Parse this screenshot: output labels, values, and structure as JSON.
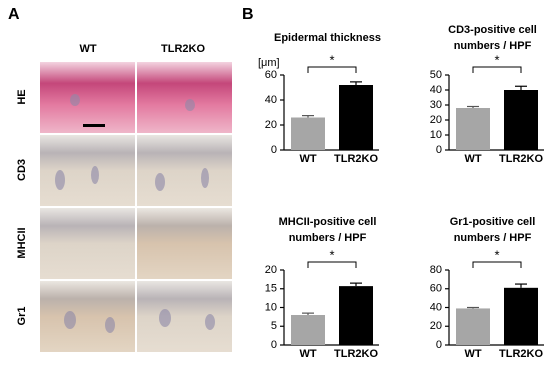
{
  "panels": {
    "a": {
      "label": "A",
      "columns": [
        "WT",
        "TLR2KO"
      ],
      "rows": [
        "HE",
        "CD3",
        "MHCII",
        "Gr1"
      ]
    },
    "b": {
      "label": "B"
    }
  },
  "chart_data": [
    {
      "type": "bar",
      "title": [
        "Epidermal thickness"
      ],
      "ylabel": "[μm]",
      "categories": [
        "WT",
        "TLR2KO"
      ],
      "series": [
        {
          "values": [
            26,
            52
          ],
          "errors": [
            1.5,
            2.5
          ],
          "colors": [
            "#a6a6a6",
            "#000000"
          ]
        }
      ],
      "ylim": [
        0,
        60
      ],
      "yticks": [
        0,
        20,
        40,
        60
      ],
      "annotation": "*"
    },
    {
      "type": "bar",
      "title": [
        "CD3-positive cell",
        "numbers / HPF"
      ],
      "categories": [
        "WT",
        "TLR2KO"
      ],
      "series": [
        {
          "values": [
            28,
            40
          ],
          "errors": [
            1,
            2.5
          ],
          "colors": [
            "#a6a6a6",
            "#000000"
          ]
        }
      ],
      "ylim": [
        0,
        50
      ],
      "yticks": [
        0,
        10,
        20,
        30,
        40,
        50
      ],
      "annotation": "*"
    },
    {
      "type": "bar",
      "title": [
        "MHCII-positive cell",
        "numbers / HPF"
      ],
      "categories": [
        "WT",
        "TLR2KO"
      ],
      "series": [
        {
          "values": [
            8,
            15.7
          ],
          "errors": [
            0.5,
            0.8
          ],
          "colors": [
            "#a6a6a6",
            "#000000"
          ]
        }
      ],
      "ylim": [
        0,
        20
      ],
      "yticks": [
        0,
        5,
        10,
        15,
        20
      ],
      "annotation": "*"
    },
    {
      "type": "bar",
      "title": [
        "Gr1-positive cell",
        "numbers / HPF"
      ],
      "categories": [
        "WT",
        "TLR2KO"
      ],
      "series": [
        {
          "values": [
            39,
            61
          ],
          "errors": [
            1,
            4
          ],
          "colors": [
            "#a6a6a6",
            "#000000"
          ]
        }
      ],
      "ylim": [
        0,
        80
      ],
      "yticks": [
        0,
        20,
        40,
        60,
        80
      ],
      "annotation": "*"
    }
  ]
}
